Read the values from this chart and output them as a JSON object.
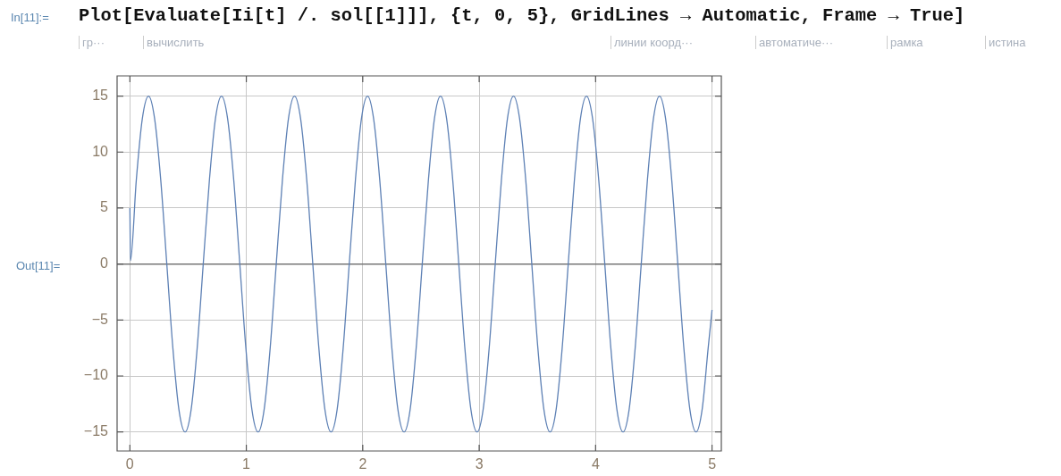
{
  "chart_data": {
    "type": "line",
    "annotations": [
      "In[11]:=",
      "Plot[Evaluate[Ii[t] /. sol[[1]]], {t, 0, 5}, GridLines → Automatic, Frame → True]",
      "гр···",
      "вычислить",
      "линии коорд···",
      "автоматиче···",
      "рамка",
      "истина",
      "Out[11]="
    ],
    "series": [
      {
        "color": "#5e81b5",
        "x": [
          0,
          0.005,
          0.055,
          0.107,
          0.16,
          0.212,
          0.265,
          0.317,
          0.369,
          0.421,
          0.474,
          0.526,
          0.578,
          0.63,
          0.683,
          0.735,
          0.787,
          0.839,
          0.892,
          0.944,
          0.996,
          1.048,
          1.101,
          1.153,
          1.205,
          1.257,
          1.31,
          1.362,
          1.414,
          1.466,
          1.519,
          1.571,
          1.623,
          1.675,
          1.728,
          1.78,
          1.832,
          1.884,
          1.937,
          1.989,
          2.041,
          2.093,
          2.146,
          2.198,
          2.25,
          2.302,
          2.355,
          2.407,
          2.459,
          2.511,
          2.564,
          2.616,
          2.668,
          2.72,
          2.773,
          2.825,
          2.877,
          2.929,
          2.982,
          3.034,
          3.086,
          3.138,
          3.191,
          3.243,
          3.295,
          3.347,
          3.4,
          3.452,
          3.504,
          3.556,
          3.609,
          3.661,
          3.713,
          3.765,
          3.818,
          3.87,
          3.922,
          3.974,
          4.027,
          4.079,
          4.131,
          4.183,
          4.236,
          4.288,
          4.34,
          4.392,
          4.445,
          4.497,
          4.549,
          4.601,
          4.654,
          4.706,
          4.758,
          4.81,
          4.863,
          4.915,
          4.967,
          5
        ],
        "values": [
          5,
          0.3,
          7.5,
          13,
          15,
          13,
          7.5,
          0,
          -7.5,
          -13,
          -15,
          -13,
          -7.5,
          0,
          7.5,
          13,
          15,
          13,
          7.5,
          0,
          -7.5,
          -13,
          -15,
          -13,
          -7.5,
          0,
          7.5,
          13,
          15,
          13,
          7.5,
          0,
          -7.5,
          -13,
          -15,
          -13,
          -7.5,
          0,
          7.5,
          13,
          15,
          13,
          7.5,
          0,
          -7.5,
          -13,
          -15,
          -13,
          -7.5,
          0,
          7.5,
          13,
          15,
          13,
          7.5,
          0,
          -7.5,
          -13,
          -15,
          -13,
          -7.5,
          0,
          7.5,
          13,
          15,
          13,
          7.5,
          0,
          -7.5,
          -13,
          -15,
          -13,
          -7.5,
          0,
          7.5,
          13,
          15,
          13,
          7.5,
          0,
          -7.5,
          -13,
          -15,
          -13,
          -7.5,
          0,
          7.5,
          13,
          15,
          13,
          7.5,
          0,
          -7.5,
          -13,
          -15,
          -13,
          -7.5,
          -4.1
        ]
      }
    ],
    "xlim": [
      -0.11,
      5.08
    ],
    "xticks": [
      0,
      1,
      2,
      3,
      4,
      5
    ],
    "ylim": [
      -16.7,
      16.8
    ],
    "yticks": [
      {
        "value": -15,
        "label": "−15"
      },
      {
        "value": -10,
        "label": "−10"
      },
      {
        "value": -5,
        "label": "−5"
      },
      0,
      5,
      10,
      15
    ],
    "grid": true,
    "legend": false,
    "marker": "none",
    "line_style": "solid"
  }
}
